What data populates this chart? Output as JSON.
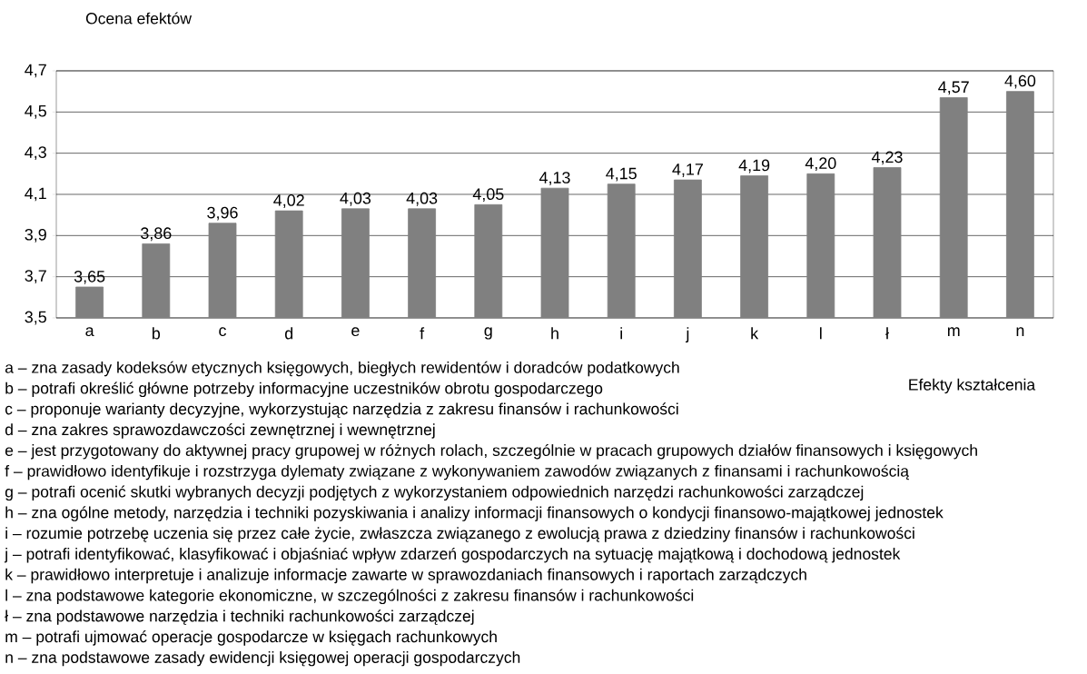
{
  "chart_data": {
    "type": "bar",
    "ylabel": "Ocena efektów",
    "xlabel": "Efekty kształcenia",
    "categories": [
      "a",
      "b",
      "c",
      "d",
      "e",
      "f",
      "g",
      "h",
      "i",
      "j",
      "k",
      "l",
      "ł",
      "m",
      "n"
    ],
    "values": [
      3.65,
      3.86,
      3.96,
      4.02,
      4.03,
      4.03,
      4.05,
      4.13,
      4.15,
      4.17,
      4.19,
      4.2,
      4.23,
      4.57,
      4.6
    ],
    "value_labels": [
      "3,65",
      "3,86",
      "3,96",
      "4,02",
      "4,03",
      "4,03",
      "4,05",
      "4,13",
      "4,15",
      "4,17",
      "4,19",
      "4,20",
      "4,23",
      "4,57",
      "4,60"
    ],
    "color": "#808080",
    "ylim": [
      3.5,
      4.7
    ],
    "yticks": [
      {
        "value": 3.5,
        "label": "3,5"
      },
      {
        "value": 3.7,
        "label": "3,7"
      },
      {
        "value": 3.9,
        "label": "3,9"
      },
      {
        "value": 4.1,
        "label": "4,1"
      },
      {
        "value": 4.3,
        "label": "4,3"
      },
      {
        "value": 4.5,
        "label": "4,5"
      },
      {
        "value": 4.7,
        "label": "4,7"
      }
    ],
    "grid": "y",
    "annotations": [
      "a – zna zasady kodeksów etycznych księgowych, biegłych rewidentów i doradców podatkowych",
      "b – potrafi określić główne potrzeby informacyjne uczestników obrotu gospodarczego",
      "c – proponuje warianty decyzyjne, wykorzystując narzędzia z zakresu finansów i rachunkowości",
      "d – zna zakres sprawozdawczości zewnętrznej i wewnętrznej",
      "e – jest przygotowany do aktywnej pracy grupowej w różnych rolach, szczególnie w pracach grupowych działów finansowych i księgowych",
      "f – prawidłowo identyfikuje i rozstrzyga dylematy związane z wykonywaniem zawodów związanych z finansami i rachunkowością",
      "g – potrafi ocenić skutki wybranych decyzji podjętych z wykorzystaniem odpowiednich narzędzi rachunkowości zarządczej",
      "h – zna ogólne metody, narzędzia i techniki pozyskiwania i analizy informacji finansowych o kondycji finansowo-majątkowej jednostek",
      "i – rozumie potrzebę uczenia się przez całe życie, zwłaszcza związanego z ewolucją prawa z dziedziny finansów i rachunkowości",
      "j – potrafi identyfikować, klasyfikować i objaśniać wpływ zdarzeń gospodarczych na sytuację majątkową i dochodową jednostek",
      "k – prawidłowo interpretuje i analizuje informacje zawarte w sprawozdaniach finansowych i raportach zarządczych",
      "l – zna podstawowe kategorie ekonomiczne, w szczególności z zakresu finansów i rachunkowości",
      "ł – zna podstawowe narzędzia i techniki rachunkowości zarządczej",
      "m – potrafi ujmować operacje gospodarcze w księgach rachunkowych",
      "n – zna podstawowe zasady ewidencji księgowej operacji gospodarczych"
    ]
  }
}
